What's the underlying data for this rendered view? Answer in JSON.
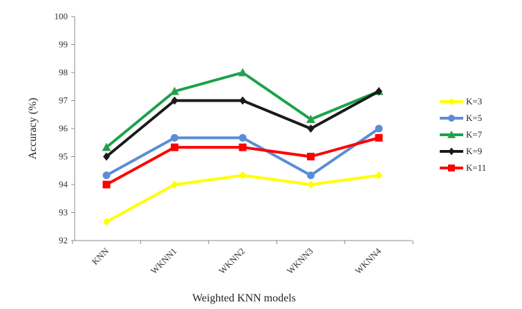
{
  "chart_data": {
    "type": "line",
    "title": "",
    "xlabel": "Weighted KNN models",
    "ylabel": "Accuracy (%)",
    "categories": [
      "KNN",
      "WKNN1",
      "WKNN2",
      "WKNN3",
      "WKNN4"
    ],
    "ylim": [
      92,
      100
    ],
    "yticks": [
      "92",
      "93",
      "94",
      "95",
      "96",
      "97",
      "98",
      "99",
      "100"
    ],
    "grid": false,
    "legend_position": "right",
    "series": [
      {
        "name": "K=3",
        "color": "#ffff00",
        "marker": "diamond",
        "values": [
          92.67,
          94.0,
          94.33,
          94.0,
          94.33
        ]
      },
      {
        "name": "K=5",
        "color": "#5b8dd6",
        "marker": "circle",
        "values": [
          94.33,
          95.67,
          95.67,
          94.33,
          96.0
        ]
      },
      {
        "name": "K=7",
        "color": "#1aa34a",
        "marker": "triangle",
        "values": [
          95.33,
          97.33,
          98.0,
          96.33,
          97.33
        ]
      },
      {
        "name": "K=9",
        "color": "#1a1a1a",
        "marker": "diamond",
        "values": [
          95.0,
          97.0,
          97.0,
          96.0,
          97.33
        ]
      },
      {
        "name": "K=11",
        "color": "#ff0000",
        "marker": "square",
        "values": [
          94.0,
          95.33,
          95.33,
          95.0,
          95.67
        ]
      }
    ]
  }
}
